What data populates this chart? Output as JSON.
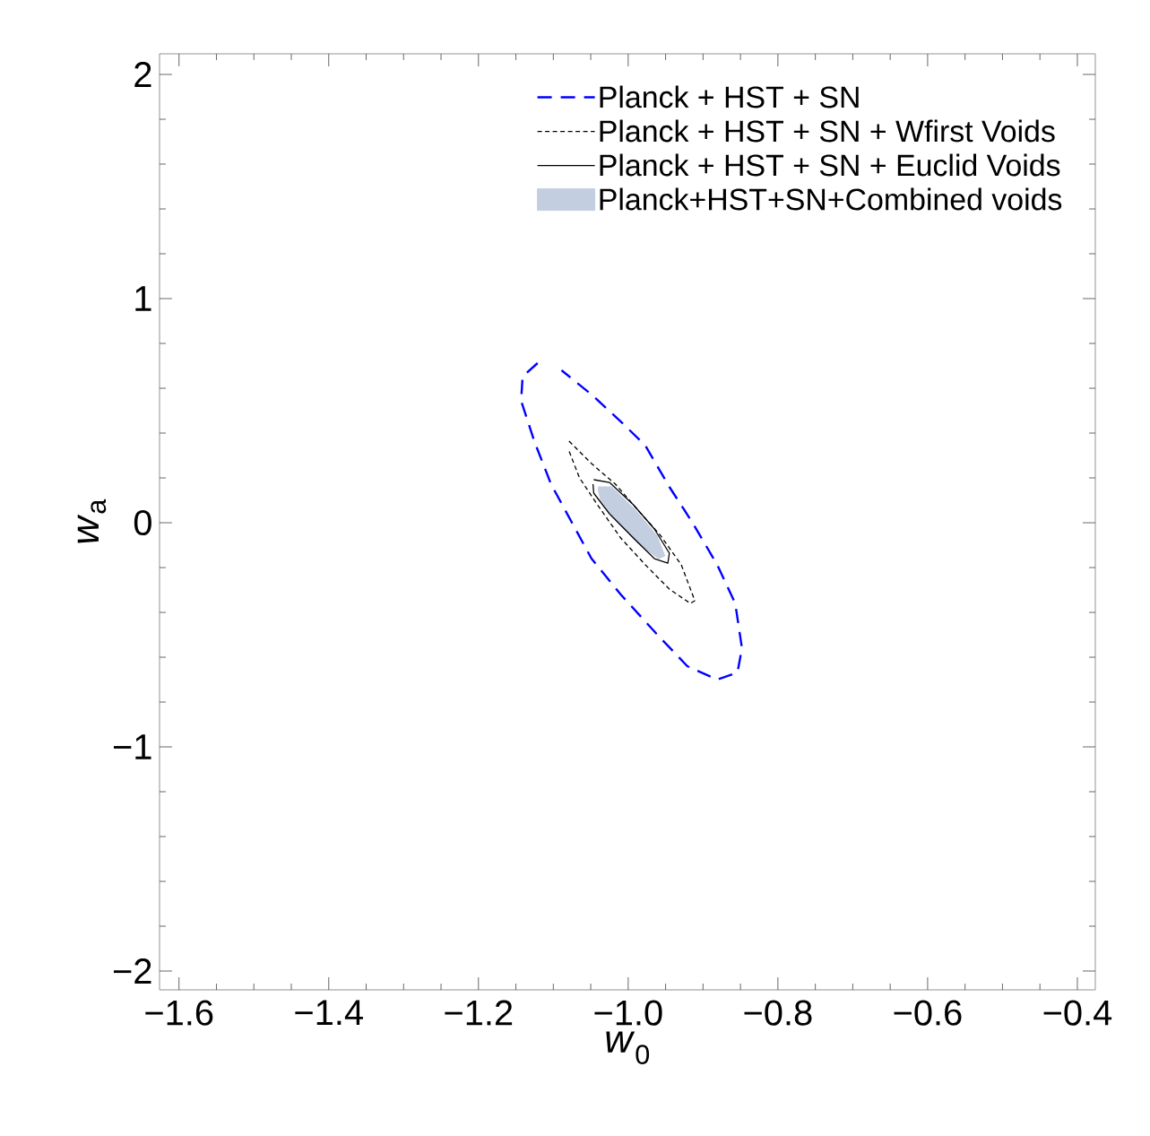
{
  "chart_data": {
    "type": "line",
    "xlabel": "*w*$_{0}$",
    "ylabel": "*w*$_{a}$",
    "xlim": [
      -1.626,
      -0.376
    ],
    "ylim": [
      -2.084,
      2.092
    ],
    "xticks": [
      {
        "value": -1.6,
        "label": "−1.6"
      },
      {
        "value": -1.4,
        "label": "−1.4"
      },
      {
        "value": -1.2,
        "label": "−1.2"
      },
      {
        "value": -1.0,
        "label": "−1.0"
      },
      {
        "value": -0.8,
        "label": "−0.8"
      },
      {
        "value": -0.6,
        "label": "−0.6"
      },
      {
        "value": -0.4,
        "label": "−0.4"
      }
    ],
    "yticks": [
      {
        "value": -2,
        "label": "−2"
      },
      {
        "value": -1,
        "label": "−1"
      },
      0,
      1,
      2
    ],
    "legend": "top right",
    "grid": false,
    "marker": "none",
    "series": [
      {
        "name": "Planck + HST + SN",
        "color": "#0000ff",
        "line_style": "dashed",
        "x": [
          -1.121,
          -1.141,
          -1.143,
          -1.125,
          -1.103,
          -1.077,
          -1.049,
          -1.01,
          -0.962,
          -0.921,
          -0.881,
          -0.854,
          -0.848,
          -0.857,
          -0.881,
          -0.914,
          -0.945,
          -0.977,
          -1.01,
          -1.049,
          -1.089
        ],
        "values": [
          0.712,
          0.652,
          0.544,
          0.36,
          0.172,
          0.012,
          -0.16,
          -0.32,
          -0.496,
          -0.64,
          -0.7,
          -0.668,
          -0.56,
          -0.36,
          -0.188,
          0,
          0.16,
          0.344,
          0.452,
          0.572,
          0.68
        ]
      },
      {
        "name": "Planck + HST + SN + Wfirst Voids",
        "color": "#000000",
        "line_style": "dashed",
        "x": [
          -1.079,
          -1.049,
          -1.017,
          -0.989,
          -0.957,
          -0.929,
          -0.911,
          -0.917,
          -0.945,
          -0.977,
          -1.01,
          -1.041,
          -1.065,
          -1.079
        ],
        "values": [
          0.364,
          0.264,
          0.172,
          0.064,
          -0.056,
          -0.188,
          -0.348,
          -0.36,
          -0.296,
          -0.188,
          -0.068,
          0.08,
          0.2,
          0.32
        ]
      },
      {
        "name": "Planck + HST + SN + Euclid Voids",
        "color": "#000000",
        "line_style": "solid",
        "x": [
          -1.046,
          -1.025,
          -0.993,
          -0.965,
          -0.945,
          -0.947,
          -0.965,
          -0.993,
          -1.025,
          -1.046,
          -1.047
        ],
        "values": [
          0.192,
          0.18,
          0.08,
          -0.028,
          -0.136,
          -0.18,
          -0.16,
          -0.068,
          0.04,
          0.132,
          0.172
        ]
      },
      {
        "name": "Planck+HST+SN+Combined voids",
        "type": "area",
        "color": "#c3cee0",
        "x": [
          -1.04,
          -1.022,
          -0.989,
          -0.962,
          -0.951,
          -0.959,
          -0.986,
          -1.017,
          -1.037,
          -1.04
        ],
        "values": [
          0.16,
          0.16,
          0.052,
          -0.056,
          -0.148,
          -0.16,
          -0.096,
          0.012,
          0.104,
          0.144
        ]
      }
    ]
  }
}
